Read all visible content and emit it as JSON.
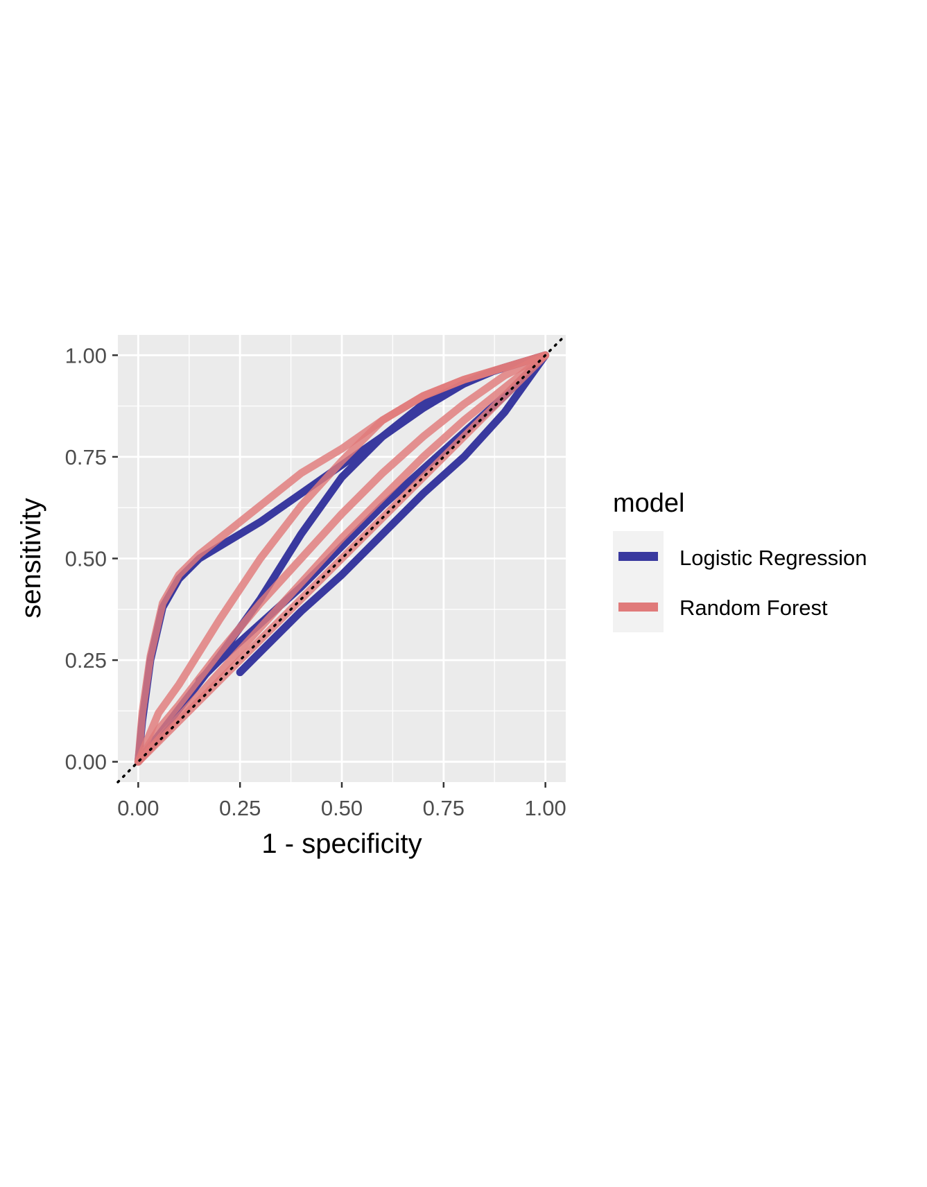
{
  "chart_data": {
    "type": "line",
    "xlabel": "1 - specificity",
    "ylabel": "sensitivity",
    "xlim": [
      -0.05,
      1.05
    ],
    "ylim": [
      -0.05,
      1.05
    ],
    "xticks": [
      "0.00",
      "0.25",
      "0.50",
      "0.75",
      "1.00"
    ],
    "yticks": [
      "0.00",
      "0.25",
      "0.50",
      "0.75",
      "1.00"
    ],
    "grid": true,
    "reference_line": "diagonal dotted",
    "legend": {
      "title": "model",
      "position": "right",
      "entries": [
        "Logistic Regression",
        "Random Forest"
      ]
    },
    "series": [
      {
        "name": "Logistic Regression",
        "color": "#39399f",
        "curves": [
          {
            "x": [
              0,
              0.01,
              0.03,
              0.06,
              0.1,
              0.15,
              0.2,
              0.25,
              0.3,
              0.4,
              0.5,
              0.6,
              0.7,
              0.8,
              0.87,
              0.9,
              1.0
            ],
            "y": [
              0,
              0.1,
              0.25,
              0.38,
              0.45,
              0.5,
              0.53,
              0.56,
              0.59,
              0.66,
              0.73,
              0.8,
              0.87,
              0.93,
              0.96,
              0.97,
              1.0
            ]
          },
          {
            "x": [
              0,
              0.1,
              0.2,
              0.3,
              0.4,
              0.5,
              0.6,
              0.7,
              0.8,
              0.87,
              1.0
            ],
            "y": [
              0,
              0.13,
              0.26,
              0.4,
              0.56,
              0.7,
              0.8,
              0.88,
              0.93,
              0.96,
              1.0
            ]
          },
          {
            "x": [
              0.15,
              0.2,
              0.3,
              0.4,
              0.5,
              0.6,
              0.7,
              0.8,
              0.9,
              1.0
            ],
            "y": [
              0.2,
              0.25,
              0.34,
              0.43,
              0.53,
              0.63,
              0.72,
              0.81,
              0.9,
              1.0
            ]
          },
          {
            "x": [
              0.25,
              0.3,
              0.4,
              0.5,
              0.6,
              0.7,
              0.8,
              0.9,
              1.0
            ],
            "y": [
              0.22,
              0.27,
              0.37,
              0.46,
              0.56,
              0.66,
              0.75,
              0.86,
              1.0
            ]
          }
        ]
      },
      {
        "name": "Random Forest",
        "color": "#e07a7a",
        "curves": [
          {
            "x": [
              0,
              0.01,
              0.03,
              0.06,
              0.1,
              0.15,
              0.2,
              0.25,
              0.3,
              0.35,
              0.4,
              0.5,
              0.6,
              0.7,
              0.8,
              0.9,
              1.0
            ],
            "y": [
              0,
              0.12,
              0.26,
              0.39,
              0.46,
              0.51,
              0.55,
              0.59,
              0.63,
              0.67,
              0.71,
              0.77,
              0.84,
              0.9,
              0.94,
              0.97,
              1.0
            ]
          },
          {
            "x": [
              0,
              0.05,
              0.1,
              0.2,
              0.3,
              0.4,
              0.5,
              0.6,
              0.7,
              0.8,
              0.9,
              1.0
            ],
            "y": [
              0,
              0.12,
              0.19,
              0.35,
              0.5,
              0.63,
              0.74,
              0.84,
              0.9,
              0.94,
              0.97,
              1.0
            ]
          },
          {
            "x": [
              0,
              0.05,
              0.1,
              0.2,
              0.3,
              0.4,
              0.5,
              0.6,
              0.7,
              0.8,
              0.9,
              1.0
            ],
            "y": [
              0,
              0.08,
              0.14,
              0.27,
              0.39,
              0.5,
              0.61,
              0.71,
              0.8,
              0.88,
              0.95,
              1.0
            ]
          },
          {
            "x": [
              0,
              0.1,
              0.2,
              0.3,
              0.4,
              0.5,
              0.6,
              0.7,
              0.8,
              0.9,
              1.0
            ],
            "y": [
              0,
              0.11,
              0.22,
              0.33,
              0.44,
              0.55,
              0.65,
              0.75,
              0.84,
              0.92,
              1.0
            ]
          },
          {
            "x": [
              0,
              0.1,
              0.2,
              0.3,
              0.4,
              0.5,
              0.6,
              0.7,
              0.8,
              0.9,
              1.0
            ],
            "y": [
              0,
              0.1,
              0.2,
              0.3,
              0.4,
              0.5,
              0.6,
              0.7,
              0.8,
              0.9,
              1.0
            ]
          }
        ]
      }
    ]
  }
}
